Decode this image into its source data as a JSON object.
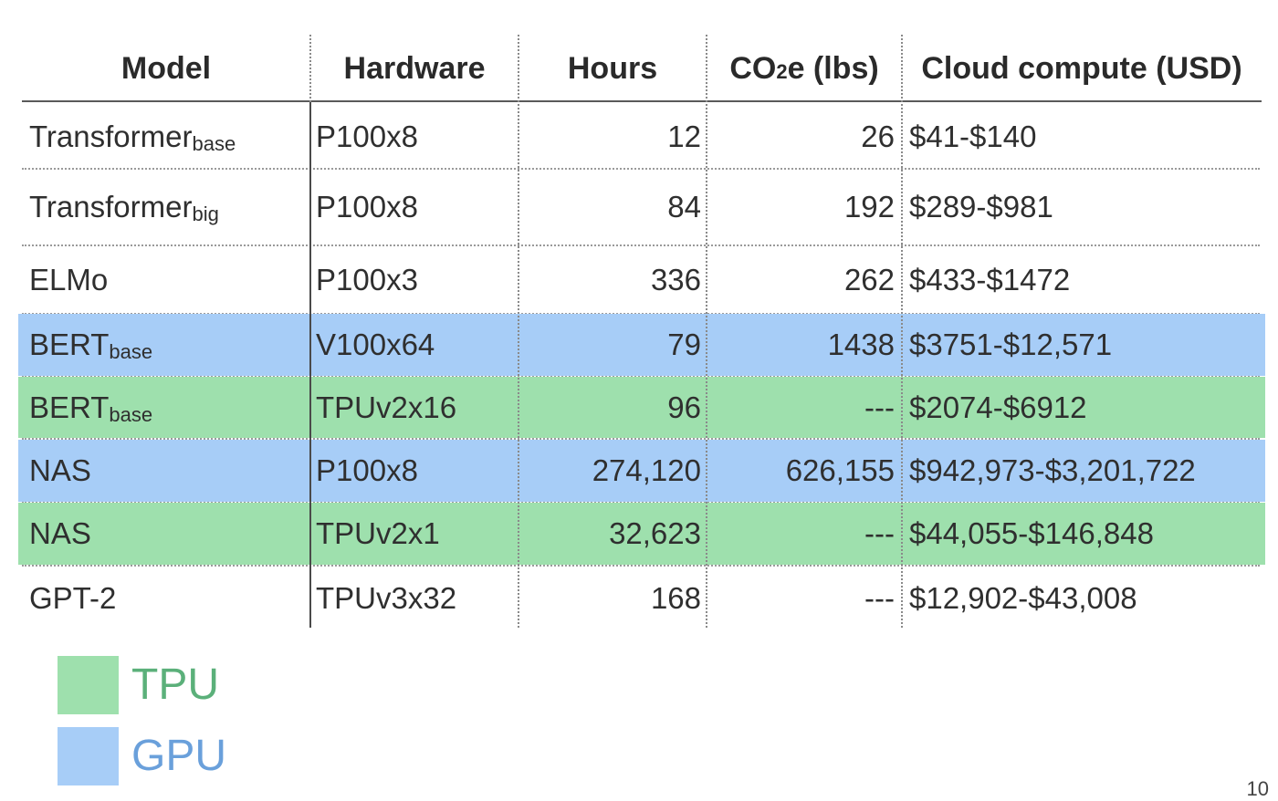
{
  "table": {
    "headers": {
      "model": "Model",
      "hardware": "Hardware",
      "hours": "Hours",
      "co2_main": "CO",
      "co2_sub": "2",
      "co2_rest": "e (lbs)",
      "cloud": "Cloud compute (USD)"
    },
    "rows": [
      {
        "model": "Transformer",
        "model_sub": "base",
        "hardware": "P100x8",
        "hours": "12",
        "co2": "26",
        "cloud": "$41-$140",
        "highlight": "none"
      },
      {
        "model": "Transformer",
        "model_sub": "big",
        "hardware": "P100x8",
        "hours": "84",
        "co2": "192",
        "cloud": "$289-$981",
        "highlight": "none"
      },
      {
        "model": "ELMo",
        "model_sub": "",
        "hardware": "P100x3",
        "hours": "336",
        "co2": "262",
        "cloud": "$433-$1472",
        "highlight": "none"
      },
      {
        "model": "BERT",
        "model_sub": "base",
        "hardware": "V100x64",
        "hours": "79",
        "co2": "1438",
        "cloud": "$3751-$12,571",
        "highlight": "gpu"
      },
      {
        "model": "BERT",
        "model_sub": "base",
        "hardware": "TPUv2x16",
        "hours": "96",
        "co2": "---",
        "cloud": "$2074-$6912",
        "highlight": "tpu"
      },
      {
        "model": "NAS",
        "model_sub": "",
        "hardware": "P100x8",
        "hours": "274,120",
        "co2": "626,155",
        "cloud": "$942,973-$3,201,722",
        "highlight": "gpu"
      },
      {
        "model": "NAS",
        "model_sub": "",
        "hardware": "TPUv2x1",
        "hours": "32,623",
        "co2": "---",
        "cloud": "$44,055-$146,848",
        "highlight": "tpu"
      },
      {
        "model": "GPT-2",
        "model_sub": "",
        "hardware": "TPUv3x32",
        "hours": "168",
        "co2": "---",
        "cloud": "$12,902-$43,008",
        "highlight": "none"
      }
    ]
  },
  "legend": {
    "tpu": {
      "label": "TPU",
      "color": "#9ee0ad",
      "text_color": "#5bb07a"
    },
    "gpu": {
      "label": "GPU",
      "color": "#a7cdf7",
      "text_color": "#6aa0db"
    }
  },
  "page_number": "10"
}
